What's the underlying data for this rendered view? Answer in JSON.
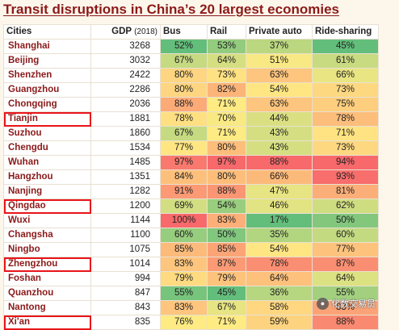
{
  "chart_data": {
    "type": "table",
    "title": "Transit disruptions in China’s 20 largest economies",
    "columns": [
      "Cities",
      "GDP",
      "(2018)",
      "Bus",
      "Rail",
      "Private auto",
      "Ride-sharing"
    ],
    "rows": [
      {
        "city": "Shanghai",
        "gdp": 3268,
        "bus": "52%",
        "rail": "53%",
        "auto": "37%",
        "ride": "45%",
        "highlighted": false
      },
      {
        "city": "Beijing",
        "gdp": 3032,
        "bus": "67%",
        "rail": "64%",
        "auto": "51%",
        "ride": "61%",
        "highlighted": false
      },
      {
        "city": "Shenzhen",
        "gdp": 2422,
        "bus": "80%",
        "rail": "73%",
        "auto": "63%",
        "ride": "66%",
        "highlighted": false
      },
      {
        "city": "Guangzhou",
        "gdp": 2286,
        "bus": "80%",
        "rail": "82%",
        "auto": "54%",
        "ride": "73%",
        "highlighted": false
      },
      {
        "city": "Chongqing",
        "gdp": 2036,
        "bus": "88%",
        "rail": "71%",
        "auto": "63%",
        "ride": "75%",
        "highlighted": false
      },
      {
        "city": "Tianjin",
        "gdp": 1881,
        "bus": "78%",
        "rail": "70%",
        "auto": "44%",
        "ride": "78%",
        "highlighted": true
      },
      {
        "city": "Suzhou",
        "gdp": 1860,
        "bus": "67%",
        "rail": "71%",
        "auto": "43%",
        "ride": "71%",
        "highlighted": false
      },
      {
        "city": "Chengdu",
        "gdp": 1534,
        "bus": "77%",
        "rail": "80%",
        "auto": "43%",
        "ride": "73%",
        "highlighted": false
      },
      {
        "city": "Wuhan",
        "gdp": 1485,
        "bus": "97%",
        "rail": "97%",
        "auto": "88%",
        "ride": "94%",
        "highlighted": false
      },
      {
        "city": "Hangzhou",
        "gdp": 1351,
        "bus": "84%",
        "rail": "80%",
        "auto": "66%",
        "ride": "93%",
        "highlighted": false
      },
      {
        "city": "Nanjing",
        "gdp": 1282,
        "bus": "91%",
        "rail": "88%",
        "auto": "47%",
        "ride": "81%",
        "highlighted": false
      },
      {
        "city": "Qingdao",
        "gdp": 1200,
        "bus": "69%",
        "rail": "54%",
        "auto": "46%",
        "ride": "62%",
        "highlighted": true
      },
      {
        "city": "Wuxi",
        "gdp": 1144,
        "bus": "100%",
        "rail": "83%",
        "auto": "17%",
        "ride": "50%",
        "highlighted": false
      },
      {
        "city": "Changsha",
        "gdp": 1100,
        "bus": "60%",
        "rail": "50%",
        "auto": "35%",
        "ride": "60%",
        "highlighted": false
      },
      {
        "city": "Ningbo",
        "gdp": 1075,
        "bus": "85%",
        "rail": "85%",
        "auto": "54%",
        "ride": "77%",
        "highlighted": false
      },
      {
        "city": "Zhengzhou",
        "gdp": 1014,
        "bus": "83%",
        "rail": "87%",
        "auto": "78%",
        "ride": "87%",
        "highlighted": true
      },
      {
        "city": "Foshan",
        "gdp": 994,
        "bus": "79%",
        "rail": "79%",
        "auto": "64%",
        "ride": "64%",
        "highlighted": false
      },
      {
        "city": "Quanzhou",
        "gdp": 847,
        "bus": "55%",
        "rail": "45%",
        "auto": "36%",
        "ride": "55%",
        "highlighted": false
      },
      {
        "city": "Nantong",
        "gdp": 843,
        "bus": "83%",
        "rail": "67%",
        "auto": "58%",
        "ride": "83%",
        "highlighted": false
      },
      {
        "city": "Xi'an",
        "gdp": 835,
        "bus": "76%",
        "rail": "71%",
        "auto": "59%",
        "ride": "88%",
        "highlighted": true
      }
    ]
  },
  "watermark": {
    "text": "化数交易员",
    "icon": "wechat-icon"
  },
  "colors": {
    "title": "#8b1a1a",
    "highlight_box": "#e8141a",
    "scale_low": "#63be7b",
    "scale_mid": "#ffeb84",
    "scale_high": "#f8696b"
  }
}
